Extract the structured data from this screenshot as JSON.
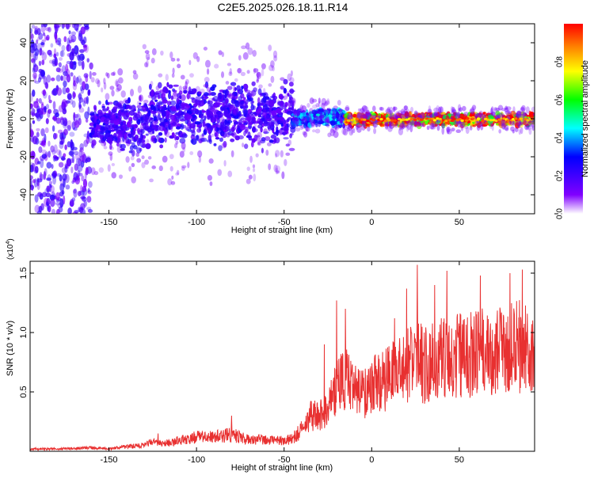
{
  "figure_title": "C2E5.2025.026.18.11.R14",
  "colorbar": {
    "label": "Normalized spectral amplitude",
    "ticks": [
      "0.0",
      "0.2",
      "0.4",
      "0.6",
      "0.8"
    ],
    "tick_values": [
      0.0,
      0.2,
      0.4,
      0.6,
      0.8
    ],
    "range": [
      0,
      1
    ]
  },
  "chart_data": [
    {
      "type": "heatmap",
      "title": "C2E5.2025.026.18.11.R14",
      "xlabel": "Height of straight line (km)",
      "ylabel": "Frequency (Hz)",
      "xlim": [
        -195,
        93
      ],
      "ylim": [
        -50,
        50
      ],
      "xticks": [
        -150,
        -100,
        -50,
        0,
        50
      ],
      "xtick_labels": [
        "-150",
        "-100",
        "-50",
        "0",
        "50"
      ],
      "yticks": [
        -40,
        -20,
        0,
        20,
        40
      ],
      "ytick_labels": [
        "-40",
        "-20",
        "0",
        "20",
        "40"
      ],
      "colormap": "rainbow",
      "regions": [
        {
          "x": [
            -195,
            -160
          ],
          "freq_band": [
            -50,
            50
          ],
          "amplitude": 0.1
        },
        {
          "x": [
            -160,
            -130
          ],
          "freq_band": [
            -15,
            8
          ],
          "amplitude": 0.2
        },
        {
          "x": [
            -130,
            -45
          ],
          "freq_band": [
            -12,
            16
          ],
          "amplitude": 0.2
        },
        {
          "x": [
            -45,
            -15
          ],
          "freq_band": [
            -3,
            4
          ],
          "amplitude": 0.35
        },
        {
          "x": [
            -15,
            93
          ],
          "freq_band": [
            -3,
            2
          ],
          "amplitude": 0.9
        }
      ]
    },
    {
      "type": "line",
      "xlabel": "Height of straight line (km)",
      "ylabel": "SNR (10 * v/v)",
      "y_multiplier_label": "(x10",
      "y_multiplier_exp": "4",
      "y_multiplier": 10000,
      "xlim": [
        -195,
        93
      ],
      "ylim": [
        0,
        1.6
      ],
      "xticks": [
        -150,
        -100,
        -50,
        0,
        50
      ],
      "xtick_labels": [
        "-150",
        "-100",
        "-50",
        "0",
        "50"
      ],
      "yticks": [
        0.5,
        1.0,
        1.5
      ],
      "ytick_labels": [
        "0.5",
        "1.0",
        "1.5"
      ],
      "line_color": "#e83030",
      "series": [
        {
          "x": [
            -195,
            -180,
            -160,
            -150,
            -140,
            -130,
            -125,
            -120,
            -110,
            -100,
            -90,
            -80,
            -70,
            -60,
            -50,
            -45,
            -40,
            -35,
            -30,
            -25,
            -20,
            -15,
            -10,
            -5,
            0,
            10,
            20,
            25,
            30,
            40,
            50,
            60,
            70,
            80,
            90,
            93
          ],
          "values": [
            0.02,
            0.02,
            0.03,
            0.02,
            0.04,
            0.05,
            0.08,
            0.06,
            0.09,
            0.12,
            0.12,
            0.14,
            0.1,
            0.1,
            0.09,
            0.11,
            0.18,
            0.3,
            0.3,
            0.34,
            0.55,
            0.62,
            0.5,
            0.48,
            0.55,
            0.62,
            0.72,
            0.8,
            0.72,
            0.78,
            0.8,
            0.82,
            0.85,
            0.88,
            0.88,
            0.88
          ],
          "peaks": [
            {
              "x": -122,
              "value": 0.15
            },
            {
              "x": -80,
              "value": 0.3
            },
            {
              "x": -27,
              "value": 0.9
            },
            {
              "x": -20,
              "value": 1.27
            },
            {
              "x": -15,
              "value": 1.2
            },
            {
              "x": 13,
              "value": 1.12
            },
            {
              "x": 20,
              "value": 1.37
            },
            {
              "x": 26,
              "value": 1.57
            },
            {
              "x": 36,
              "value": 1.4
            },
            {
              "x": 43,
              "value": 1.52
            },
            {
              "x": 62,
              "value": 1.48
            },
            {
              "x": 79,
              "value": 1.5
            },
            {
              "x": 86,
              "value": 1.53
            }
          ]
        }
      ]
    }
  ]
}
